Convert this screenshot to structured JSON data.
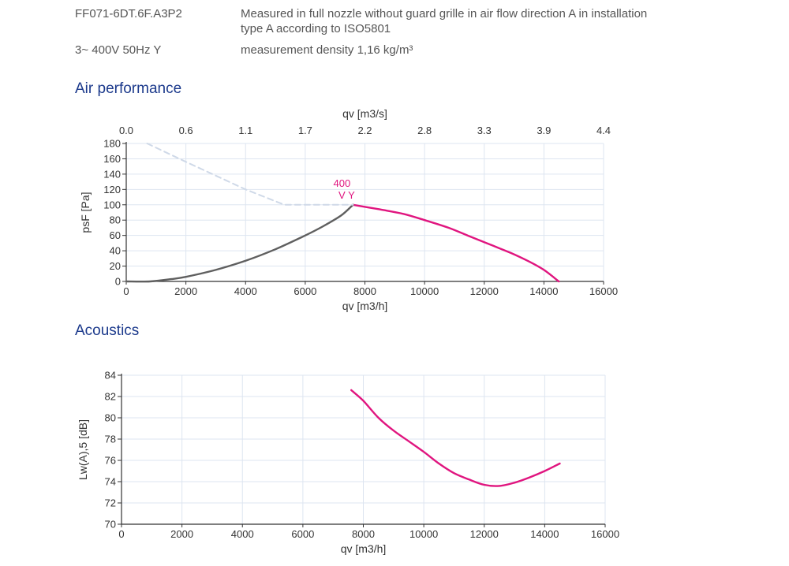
{
  "header": {
    "model": "FF071-6DT.6F.A3P2",
    "supply": "3~ 400V 50Hz Y",
    "conditions_line1": "Measured in full nozzle without guard grille in air flow direction A in installation",
    "conditions_line2": "type A according to ISO5801",
    "density": "measurement density 1,16 kg/m³"
  },
  "colors": {
    "title": "#1c3a8c",
    "curve_pink": "#e0157f",
    "curve_gray": "#5f5f5f",
    "dashed": "#cfd9e8",
    "grid": "#dde5f0"
  },
  "chart_data": [
    {
      "type": "line",
      "title": "Air performance",
      "xlabel": "qv [m3/h]",
      "x2label": "qv [m3/s]",
      "ylabel": "psF [Pa]",
      "xlim": [
        0,
        16000
      ],
      "ylim": [
        0,
        180
      ],
      "xticks": [
        "0",
        "2000",
        "4000",
        "6000",
        "8000",
        "10000",
        "12000",
        "14000",
        "16000"
      ],
      "yticks": [
        "0",
        "20",
        "40",
        "60",
        "80",
        "100",
        "120",
        "140",
        "160",
        "180"
      ],
      "x2ticks": [
        "0.0",
        "0.6",
        "1.1",
        "1.7",
        "2.2",
        "2.8",
        "3.3",
        "3.9",
        "4.4"
      ],
      "grid": true,
      "annotation": {
        "line1": "400",
        "line2": "V Y",
        "x": 7600,
        "y": 100
      },
      "series": [
        {
          "style": "pink-solid",
          "x": [
            7600,
            8500,
            9300,
            10000,
            10800,
            11500,
            12200,
            12900,
            13500,
            14000,
            14500
          ],
          "y": [
            100,
            94,
            88,
            80,
            70,
            59,
            48,
            37,
            26,
            15,
            0
          ]
        },
        {
          "style": "gray-solid",
          "x": [
            0,
            800,
            1500,
            2000,
            3000,
            4000,
            5000,
            6000,
            6600,
            7200,
            7600
          ],
          "y": [
            0,
            0,
            3,
            6,
            15,
            27,
            42,
            60,
            72,
            86,
            100
          ]
        },
        {
          "style": "dashed",
          "x": [
            700,
            2000,
            4000,
            5300,
            7600
          ],
          "y": [
            180,
            156,
            120,
            100,
            100
          ]
        }
      ]
    },
    {
      "type": "line",
      "title": "Acoustics",
      "xlabel": "qv [m3/h]",
      "ylabel": "Lw(A),5 [dB]",
      "xlim": [
        0,
        16000
      ],
      "ylim": [
        70,
        84
      ],
      "xticks": [
        "0",
        "2000",
        "4000",
        "6000",
        "8000",
        "10000",
        "12000",
        "14000",
        "16000"
      ],
      "yticks": [
        "70",
        "72",
        "74",
        "76",
        "78",
        "80",
        "82",
        "84"
      ],
      "grid": true,
      "series": [
        {
          "style": "pink-solid",
          "x": [
            7600,
            8000,
            8500,
            9000,
            9500,
            10000,
            10500,
            11000,
            11500,
            12000,
            12500,
            13000,
            13500,
            14000,
            14500
          ],
          "y": [
            82.6,
            81.6,
            80.0,
            78.8,
            77.8,
            76.8,
            75.7,
            74.8,
            74.2,
            73.7,
            73.6,
            73.9,
            74.4,
            75.0,
            75.7
          ]
        }
      ]
    }
  ]
}
